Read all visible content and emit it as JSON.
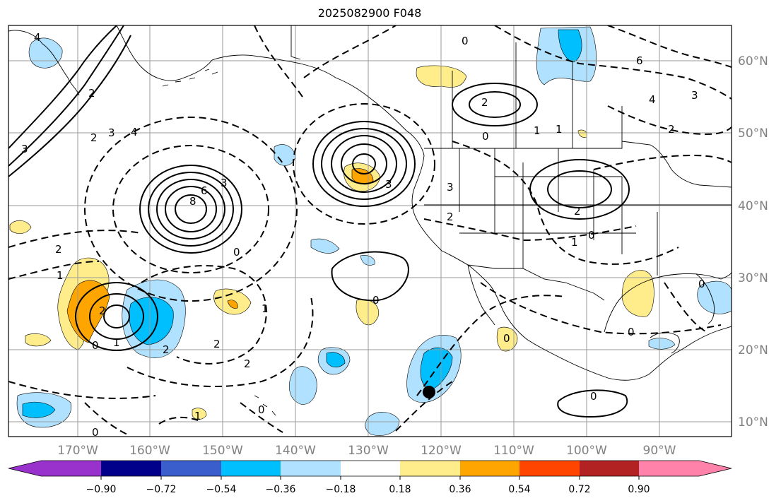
{
  "title": "2025082900 F048",
  "lon_labels": [
    "170°W",
    "160°W",
    "150°W",
    "140°W",
    "130°W",
    "120°W",
    "110°W",
    "100°W",
    "90°W"
  ],
  "lat_labels": [
    "60°N",
    "50°N",
    "40°N",
    "30°N",
    "20°N",
    "10°N"
  ],
  "colorbar": {
    "tick_labels": [
      "−0.90",
      "−0.72",
      "−0.54",
      "−0.36",
      "−0.18",
      "0.18",
      "0.36",
      "0.54",
      "0.72",
      "0.90"
    ],
    "colors": [
      "#9932cc",
      "#00008b",
      "#3a5fcd",
      "#00bfff",
      "#b0e2ff",
      "#ffffff",
      "#ffec8b",
      "#ffa500",
      "#ff4500",
      "#b22222",
      "#ff82ab"
    ]
  },
  "contour_labels": [
    "4",
    "2",
    "2",
    "3",
    "4",
    "3",
    "8",
    "6",
    "3",
    "2",
    "0",
    "2",
    "1",
    "3",
    "2",
    "1",
    "0",
    "2",
    "2",
    "1",
    "3",
    "2",
    "0",
    "2",
    "1",
    "0",
    "1",
    "0",
    "2",
    "1",
    "0",
    "6",
    "4",
    "3",
    "2",
    "0",
    "0",
    "0",
    "0",
    "1",
    "0",
    "0"
  ],
  "marker": {
    "lon": -122.3,
    "lat": 14.1
  }
}
